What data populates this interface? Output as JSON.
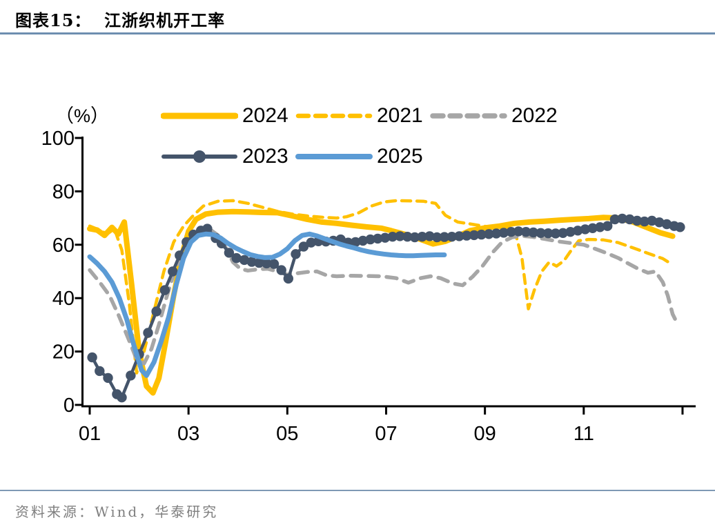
{
  "header": {
    "title": "图表15：  江浙织机开工率"
  },
  "footer": {
    "source_text": "资料来源：Wind，华泰研究"
  },
  "colors": {
    "rule_blue": "#6D8EB0",
    "footer_rule": "#7E99B4",
    "footer_text": "#7F7F7F",
    "axis": "#000000",
    "series_gold": "#FFC000",
    "series_gray": "#A6A6A6",
    "series_slate": "#44546A",
    "series_blue": "#5B9BD5"
  },
  "chart_data": {
    "type": "line",
    "title": "江浙织机开工率",
    "unit_label": "（%）",
    "grid": false,
    "legend_position": "top",
    "ylim": [
      0,
      100
    ],
    "yticks": [
      0,
      20,
      40,
      60,
      80,
      100
    ],
    "xticks": [
      {
        "m": 1,
        "label": "01"
      },
      {
        "m": 3,
        "label": "03"
      },
      {
        "m": 5,
        "label": "05"
      },
      {
        "m": 7,
        "label": "07"
      },
      {
        "m": 9,
        "label": "09"
      },
      {
        "m": 11,
        "label": "11"
      },
      {
        "m": 13,
        "label": ""
      }
    ],
    "legend_rows": [
      [
        "2024",
        "2021",
        "2022"
      ],
      [
        "2023",
        "2025"
      ]
    ],
    "series": [
      {
        "name": "2024",
        "color": "#FFC000",
        "style": "solid",
        "width": 8,
        "points": [
          [
            1,
            66
          ],
          [
            1.15,
            65.5
          ],
          [
            1.3,
            63.5
          ],
          [
            1.45,
            66.5
          ],
          [
            1.58,
            64
          ],
          [
            1.7,
            68.5
          ],
          [
            1.85,
            45
          ],
          [
            2.0,
            20
          ],
          [
            2.15,
            7
          ],
          [
            2.28,
            4.5
          ],
          [
            2.4,
            10
          ],
          [
            2.55,
            25
          ],
          [
            2.7,
            41
          ],
          [
            2.85,
            55
          ],
          [
            3.0,
            65
          ],
          [
            3.15,
            69.5
          ],
          [
            3.35,
            71.5
          ],
          [
            3.6,
            72.2
          ],
          [
            3.9,
            72.4
          ],
          [
            4.2,
            72.3
          ],
          [
            4.5,
            72.1
          ],
          [
            4.8,
            72
          ],
          [
            5.1,
            70.8
          ],
          [
            5.4,
            69.5
          ],
          [
            5.7,
            68.5
          ],
          [
            6.0,
            68
          ],
          [
            6.3,
            67.3
          ],
          [
            6.6,
            66.7
          ],
          [
            6.9,
            66.2
          ],
          [
            7.1,
            65.3
          ],
          [
            7.4,
            63.8
          ],
          [
            7.7,
            62
          ],
          [
            7.95,
            60.3
          ],
          [
            8.2,
            61.3
          ],
          [
            8.45,
            63.2
          ],
          [
            8.7,
            65.3
          ],
          [
            9.0,
            66.3
          ],
          [
            9.3,
            67
          ],
          [
            9.6,
            68
          ],
          [
            9.9,
            68.5
          ],
          [
            10.2,
            68.8
          ],
          [
            10.5,
            69.2
          ],
          [
            10.8,
            69.5
          ],
          [
            11.1,
            69.8
          ],
          [
            11.4,
            70.2
          ],
          [
            11.7,
            70
          ],
          [
            12.0,
            68.5
          ],
          [
            12.3,
            66.3
          ],
          [
            12.55,
            64.5
          ],
          [
            12.8,
            63.2
          ]
        ]
      },
      {
        "name": "2021",
        "color": "#FFC000",
        "style": "dashed",
        "width": 4.5,
        "dash": "13 9",
        "points": [
          [
            1,
            67
          ],
          [
            1.2,
            65.5
          ],
          [
            1.35,
            64
          ],
          [
            1.5,
            66
          ],
          [
            1.65,
            58
          ],
          [
            1.8,
            38
          ],
          [
            1.95,
            12
          ],
          [
            2.1,
            20
          ],
          [
            2.3,
            35
          ],
          [
            2.5,
            50
          ],
          [
            2.7,
            61
          ],
          [
            2.9,
            67
          ],
          [
            3.1,
            71
          ],
          [
            3.3,
            74.5
          ],
          [
            3.6,
            76.3
          ],
          [
            3.9,
            76.5
          ],
          [
            4.2,
            75.5
          ],
          [
            4.5,
            74
          ],
          [
            4.8,
            72.5
          ],
          [
            5.1,
            71.5
          ],
          [
            5.4,
            70.8
          ],
          [
            5.7,
            70.3
          ],
          [
            6.0,
            70
          ],
          [
            6.2,
            70.5
          ],
          [
            6.45,
            72
          ],
          [
            6.7,
            74.5
          ],
          [
            6.95,
            76
          ],
          [
            7.2,
            76.5
          ],
          [
            7.5,
            76.4
          ],
          [
            7.75,
            76.3
          ],
          [
            8.0,
            75.5
          ],
          [
            8.2,
            71
          ],
          [
            8.45,
            68.5
          ],
          [
            8.7,
            67.8
          ],
          [
            8.95,
            67
          ],
          [
            9.2,
            66.4
          ],
          [
            9.45,
            66.6
          ],
          [
            9.6,
            65.5
          ],
          [
            9.75,
            55
          ],
          [
            9.88,
            36
          ],
          [
            10.0,
            43
          ],
          [
            10.15,
            50
          ],
          [
            10.3,
            53.5
          ],
          [
            10.45,
            52
          ],
          [
            10.6,
            54
          ],
          [
            10.75,
            58
          ],
          [
            10.9,
            61.5
          ],
          [
            11.1,
            62
          ],
          [
            11.4,
            61.8
          ],
          [
            11.7,
            60.8
          ],
          [
            12.0,
            58.8
          ],
          [
            12.3,
            56.8
          ],
          [
            12.6,
            54.8
          ],
          [
            12.8,
            52.5
          ]
        ]
      },
      {
        "name": "2022",
        "color": "#A6A6A6",
        "style": "dashed",
        "width": 5.5,
        "dash": "15 11",
        "points": [
          [
            1,
            50.5
          ],
          [
            1.2,
            46
          ],
          [
            1.4,
            41
          ],
          [
            1.6,
            33
          ],
          [
            1.8,
            24
          ],
          [
            1.95,
            17
          ],
          [
            2.1,
            15.5
          ],
          [
            2.25,
            21
          ],
          [
            2.4,
            30
          ],
          [
            2.55,
            40
          ],
          [
            2.7,
            49
          ],
          [
            2.85,
            56
          ],
          [
            3.0,
            61
          ],
          [
            3.15,
            64.5
          ],
          [
            3.3,
            66.3
          ],
          [
            3.45,
            65.5
          ],
          [
            3.6,
            63.5
          ],
          [
            3.75,
            59
          ],
          [
            3.9,
            53.5
          ],
          [
            4.05,
            51
          ],
          [
            4.2,
            50.3
          ],
          [
            4.4,
            50.8
          ],
          [
            4.6,
            51
          ],
          [
            4.8,
            50
          ],
          [
            5.0,
            48.8
          ],
          [
            5.2,
            49.3
          ],
          [
            5.4,
            49.8
          ],
          [
            5.6,
            50
          ],
          [
            5.8,
            48.5
          ],
          [
            6.0,
            48.2
          ],
          [
            6.3,
            48.4
          ],
          [
            6.6,
            48.3
          ],
          [
            6.9,
            48.2
          ],
          [
            7.2,
            47.5
          ],
          [
            7.45,
            45.8
          ],
          [
            7.7,
            47.5
          ],
          [
            7.9,
            48.2
          ],
          [
            8.1,
            47.5
          ],
          [
            8.35,
            45.5
          ],
          [
            8.55,
            44.8
          ],
          [
            8.75,
            48
          ],
          [
            8.95,
            52
          ],
          [
            9.15,
            57
          ],
          [
            9.35,
            61
          ],
          [
            9.55,
            62.8
          ],
          [
            9.75,
            63.3
          ],
          [
            9.95,
            63
          ],
          [
            10.2,
            62.2
          ],
          [
            10.5,
            61.2
          ],
          [
            10.8,
            60.5
          ],
          [
            11.0,
            60
          ],
          [
            11.3,
            58
          ],
          [
            11.5,
            56.6
          ],
          [
            11.7,
            55
          ],
          [
            11.9,
            53
          ],
          [
            12.1,
            51
          ],
          [
            12.3,
            49.5
          ],
          [
            12.45,
            50
          ],
          [
            12.6,
            46
          ],
          [
            12.7,
            41
          ],
          [
            12.8,
            34
          ],
          [
            12.88,
            31
          ]
        ]
      },
      {
        "name": "2023",
        "color": "#44546A",
        "style": "solid",
        "width": 4.5,
        "marker": 7.2,
        "points": [
          [
            1.05,
            17.8
          ],
          [
            1.2,
            12.7
          ],
          [
            1.37,
            10.1
          ],
          [
            1.55,
            4
          ],
          [
            1.65,
            2.8
          ],
          [
            1.83,
            11
          ],
          [
            2.0,
            19
          ],
          [
            2.18,
            27
          ],
          [
            2.35,
            35
          ],
          [
            2.52,
            43
          ],
          [
            2.68,
            50
          ],
          [
            2.82,
            56
          ],
          [
            2.96,
            61
          ],
          [
            3.1,
            63.8
          ],
          [
            3.25,
            65.3
          ],
          [
            3.38,
            66
          ],
          [
            3.55,
            62.5
          ],
          [
            3.67,
            60.5
          ],
          [
            3.82,
            57
          ],
          [
            3.97,
            55
          ],
          [
            4.13,
            54.3
          ],
          [
            4.28,
            53.6
          ],
          [
            4.43,
            53.2
          ],
          [
            4.58,
            53
          ],
          [
            4.73,
            52.8
          ],
          [
            4.88,
            50.5
          ],
          [
            5.02,
            47.3
          ],
          [
            5.17,
            56.5
          ],
          [
            5.33,
            59.3
          ],
          [
            5.48,
            60.8
          ],
          [
            5.63,
            61.3
          ],
          [
            5.78,
            61.2
          ],
          [
            5.93,
            61.5
          ],
          [
            6.08,
            62
          ],
          [
            6.23,
            60.8
          ],
          [
            6.38,
            61
          ],
          [
            6.53,
            61.5
          ],
          [
            6.68,
            62
          ],
          [
            6.83,
            62.3
          ],
          [
            6.98,
            62.6
          ],
          [
            7.13,
            63
          ],
          [
            7.28,
            63.2
          ],
          [
            7.43,
            63
          ],
          [
            7.58,
            62.8
          ],
          [
            7.73,
            63
          ],
          [
            7.88,
            63.2
          ],
          [
            8.03,
            62.8
          ],
          [
            8.18,
            62.9
          ],
          [
            8.33,
            63
          ],
          [
            8.48,
            63.2
          ],
          [
            8.63,
            63.4
          ],
          [
            8.78,
            63.6
          ],
          [
            8.93,
            63.8
          ],
          [
            9.08,
            64
          ],
          [
            9.23,
            64.2
          ],
          [
            9.38,
            64.5
          ],
          [
            9.53,
            64.8
          ],
          [
            9.68,
            65
          ],
          [
            9.83,
            64.8
          ],
          [
            9.98,
            64.6
          ],
          [
            10.13,
            64.4
          ],
          [
            10.28,
            64.3
          ],
          [
            10.43,
            64.2
          ],
          [
            10.58,
            64.4
          ],
          [
            10.73,
            64.8
          ],
          [
            10.88,
            65.3
          ],
          [
            11.03,
            65.8
          ],
          [
            11.18,
            66.2
          ],
          [
            11.33,
            66.6
          ],
          [
            11.48,
            67
          ],
          [
            11.63,
            69.5
          ],
          [
            11.78,
            69.8
          ],
          [
            11.93,
            69.5
          ],
          [
            12.08,
            69
          ],
          [
            12.23,
            68.7
          ],
          [
            12.38,
            69
          ],
          [
            12.53,
            68.4
          ],
          [
            12.68,
            67.7
          ],
          [
            12.83,
            67
          ],
          [
            12.95,
            66.6
          ]
        ]
      },
      {
        "name": "2025",
        "color": "#5B9BD5",
        "style": "solid",
        "width": 7,
        "points": [
          [
            1,
            55.5
          ],
          [
            1.15,
            53
          ],
          [
            1.3,
            50
          ],
          [
            1.45,
            46
          ],
          [
            1.6,
            40
          ],
          [
            1.75,
            32
          ],
          [
            1.9,
            22
          ],
          [
            2.05,
            13
          ],
          [
            2.15,
            11
          ],
          [
            2.3,
            16
          ],
          [
            2.45,
            24
          ],
          [
            2.6,
            33
          ],
          [
            2.75,
            45
          ],
          [
            2.9,
            55
          ],
          [
            3.05,
            61
          ],
          [
            3.2,
            63.5
          ],
          [
            3.35,
            64
          ],
          [
            3.5,
            63.8
          ],
          [
            3.65,
            62.5
          ],
          [
            3.8,
            60.5
          ],
          [
            3.95,
            58.8
          ],
          [
            4.1,
            57.5
          ],
          [
            4.25,
            56.3
          ],
          [
            4.4,
            55.6
          ],
          [
            4.55,
            55.2
          ],
          [
            4.7,
            55.3
          ],
          [
            4.85,
            56.5
          ],
          [
            5.0,
            58.5
          ],
          [
            5.15,
            61.5
          ],
          [
            5.3,
            63.5
          ],
          [
            5.45,
            64
          ],
          [
            5.6,
            63.3
          ],
          [
            5.75,
            62.3
          ],
          [
            5.9,
            61.3
          ],
          [
            6.05,
            60.3
          ],
          [
            6.2,
            59.5
          ],
          [
            6.35,
            58.8
          ],
          [
            6.5,
            58
          ],
          [
            6.65,
            57.4
          ],
          [
            6.8,
            56.9
          ],
          [
            6.95,
            56.5
          ],
          [
            7.1,
            56.2
          ],
          [
            7.25,
            56
          ],
          [
            7.4,
            55.9
          ],
          [
            7.55,
            55.9
          ],
          [
            7.7,
            56
          ],
          [
            7.85,
            56.1
          ],
          [
            8.0,
            56.2
          ],
          [
            8.18,
            56.2
          ]
        ]
      }
    ]
  }
}
